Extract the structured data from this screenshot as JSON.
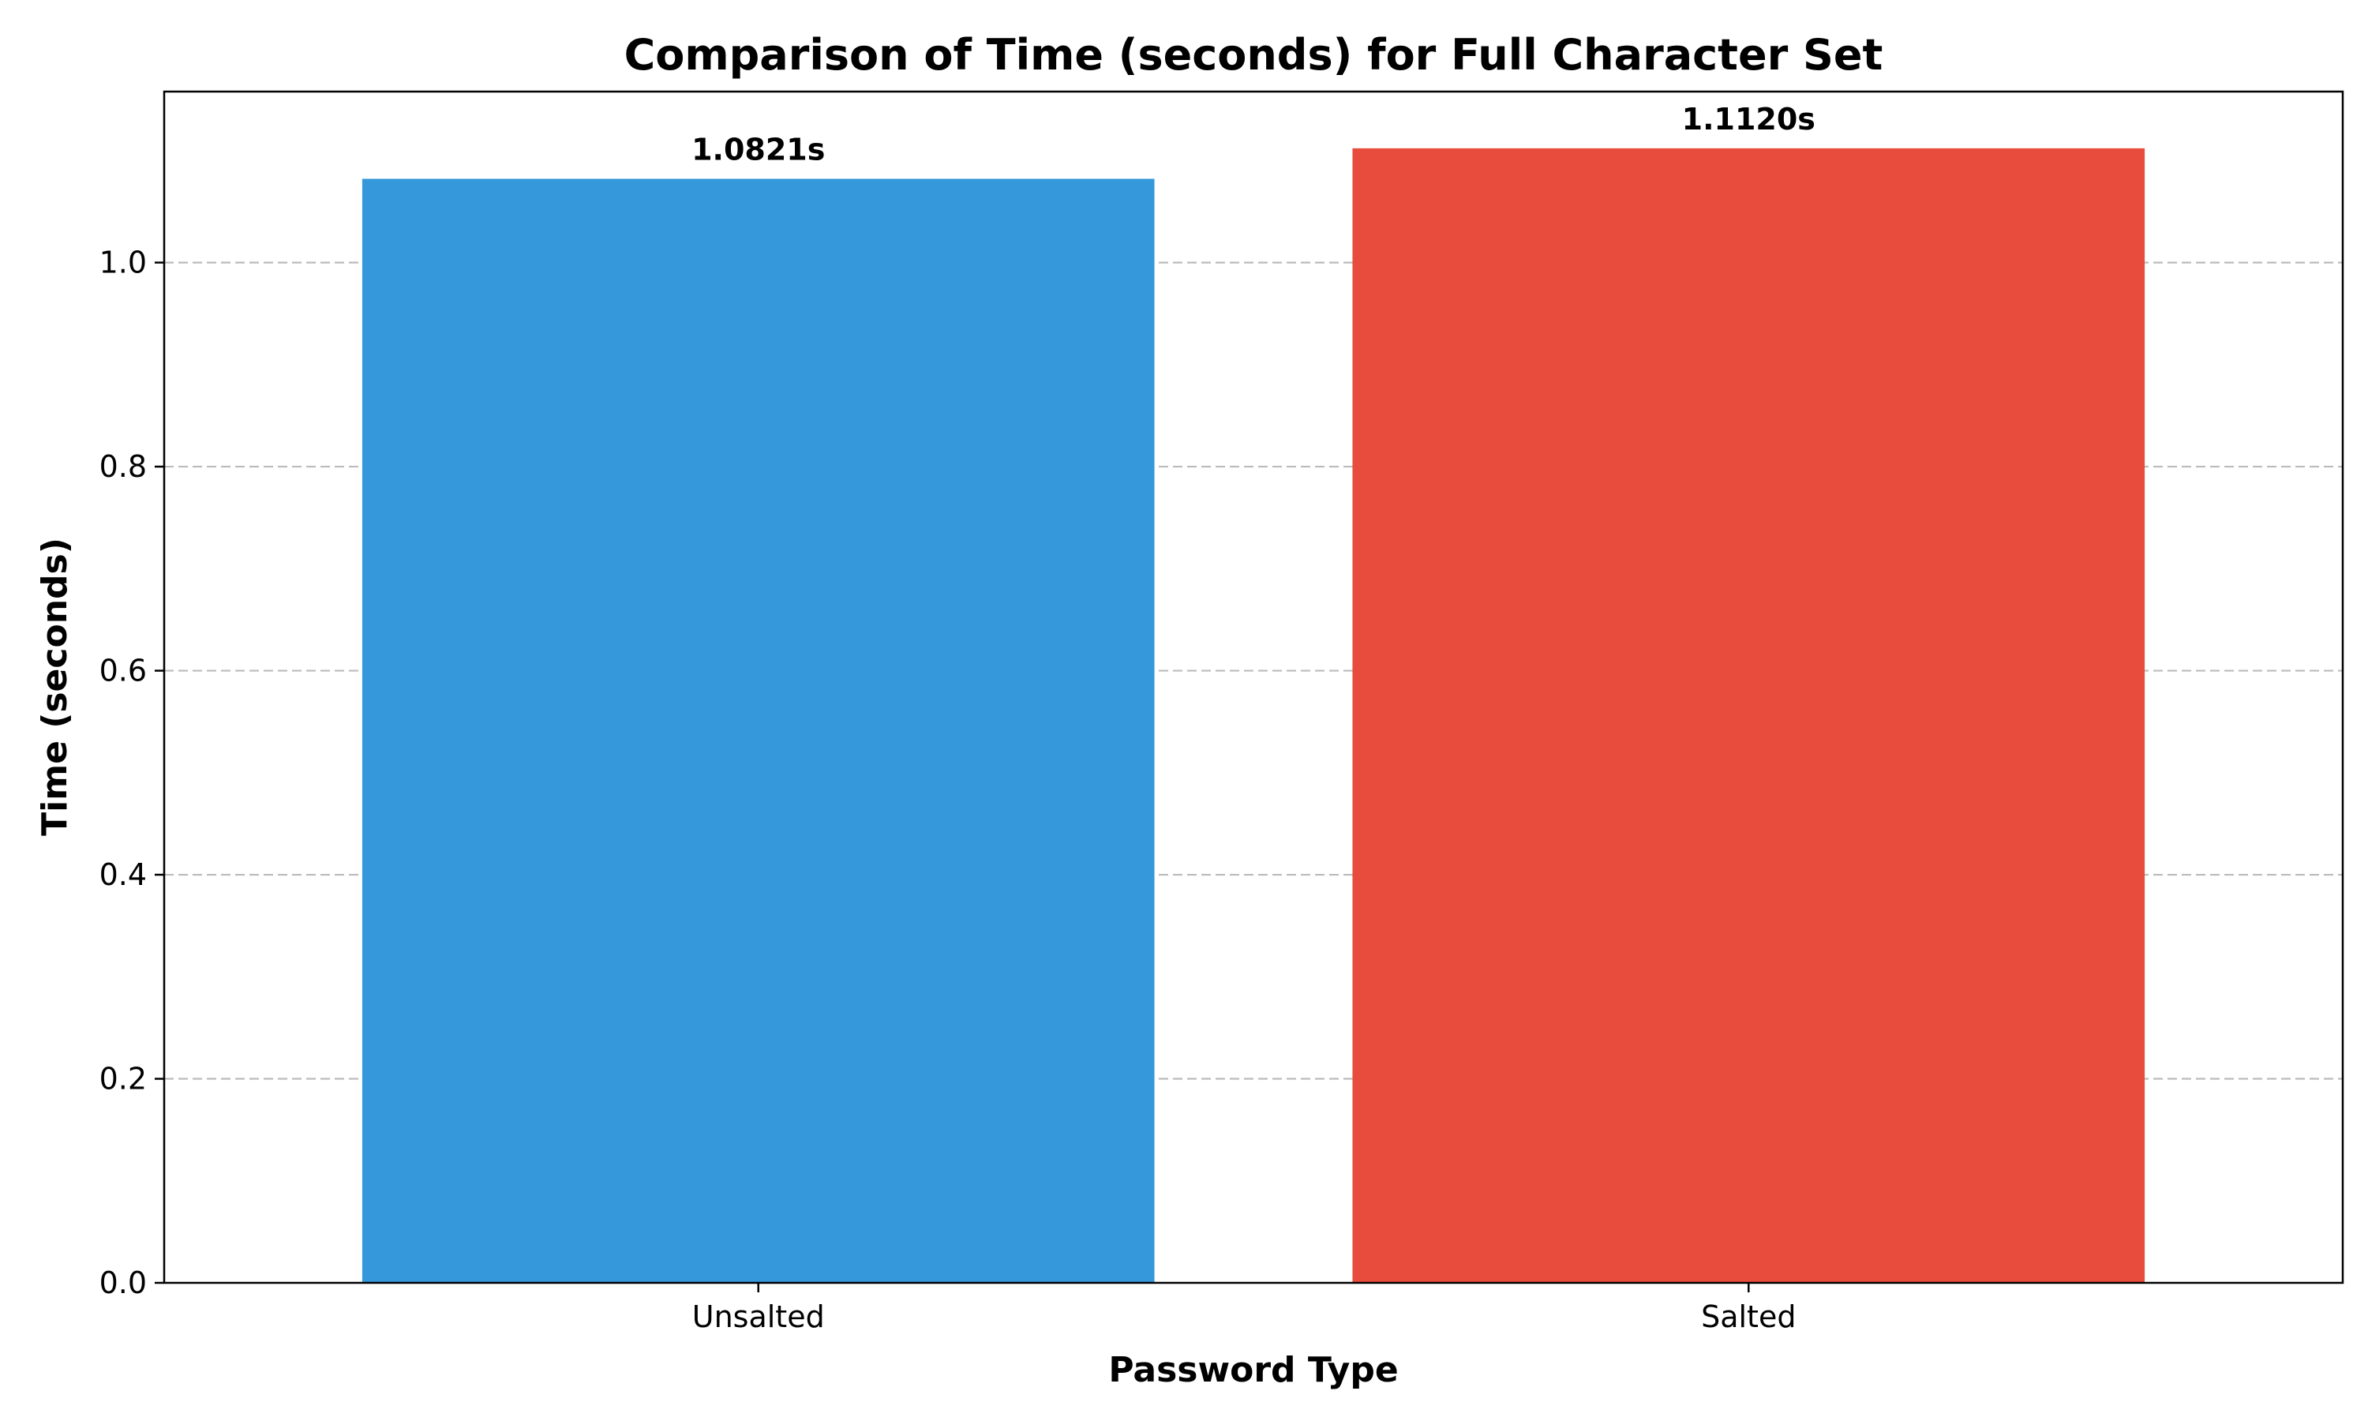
{
  "chart_data": {
    "type": "bar",
    "title": "Comparison of Time (seconds) for Full Character Set",
    "xlabel": "Password Type",
    "ylabel": "Time (seconds)",
    "categories": [
      "Unsalted",
      "Salted"
    ],
    "values": [
      1.0821,
      1.112
    ],
    "value_labels": [
      "1.0821s",
      "1.1120s"
    ],
    "colors": [
      "#3498db",
      "#e74c3c"
    ],
    "ylim": [
      0,
      1.1676
    ],
    "yticks": [
      0.0,
      0.2,
      0.4,
      0.6,
      0.8,
      1.0
    ],
    "ytick_labels": [
      "0.0",
      "0.2",
      "0.4",
      "0.6",
      "0.8",
      "1.0"
    ],
    "grid": "y-dashed",
    "legend": "none"
  }
}
